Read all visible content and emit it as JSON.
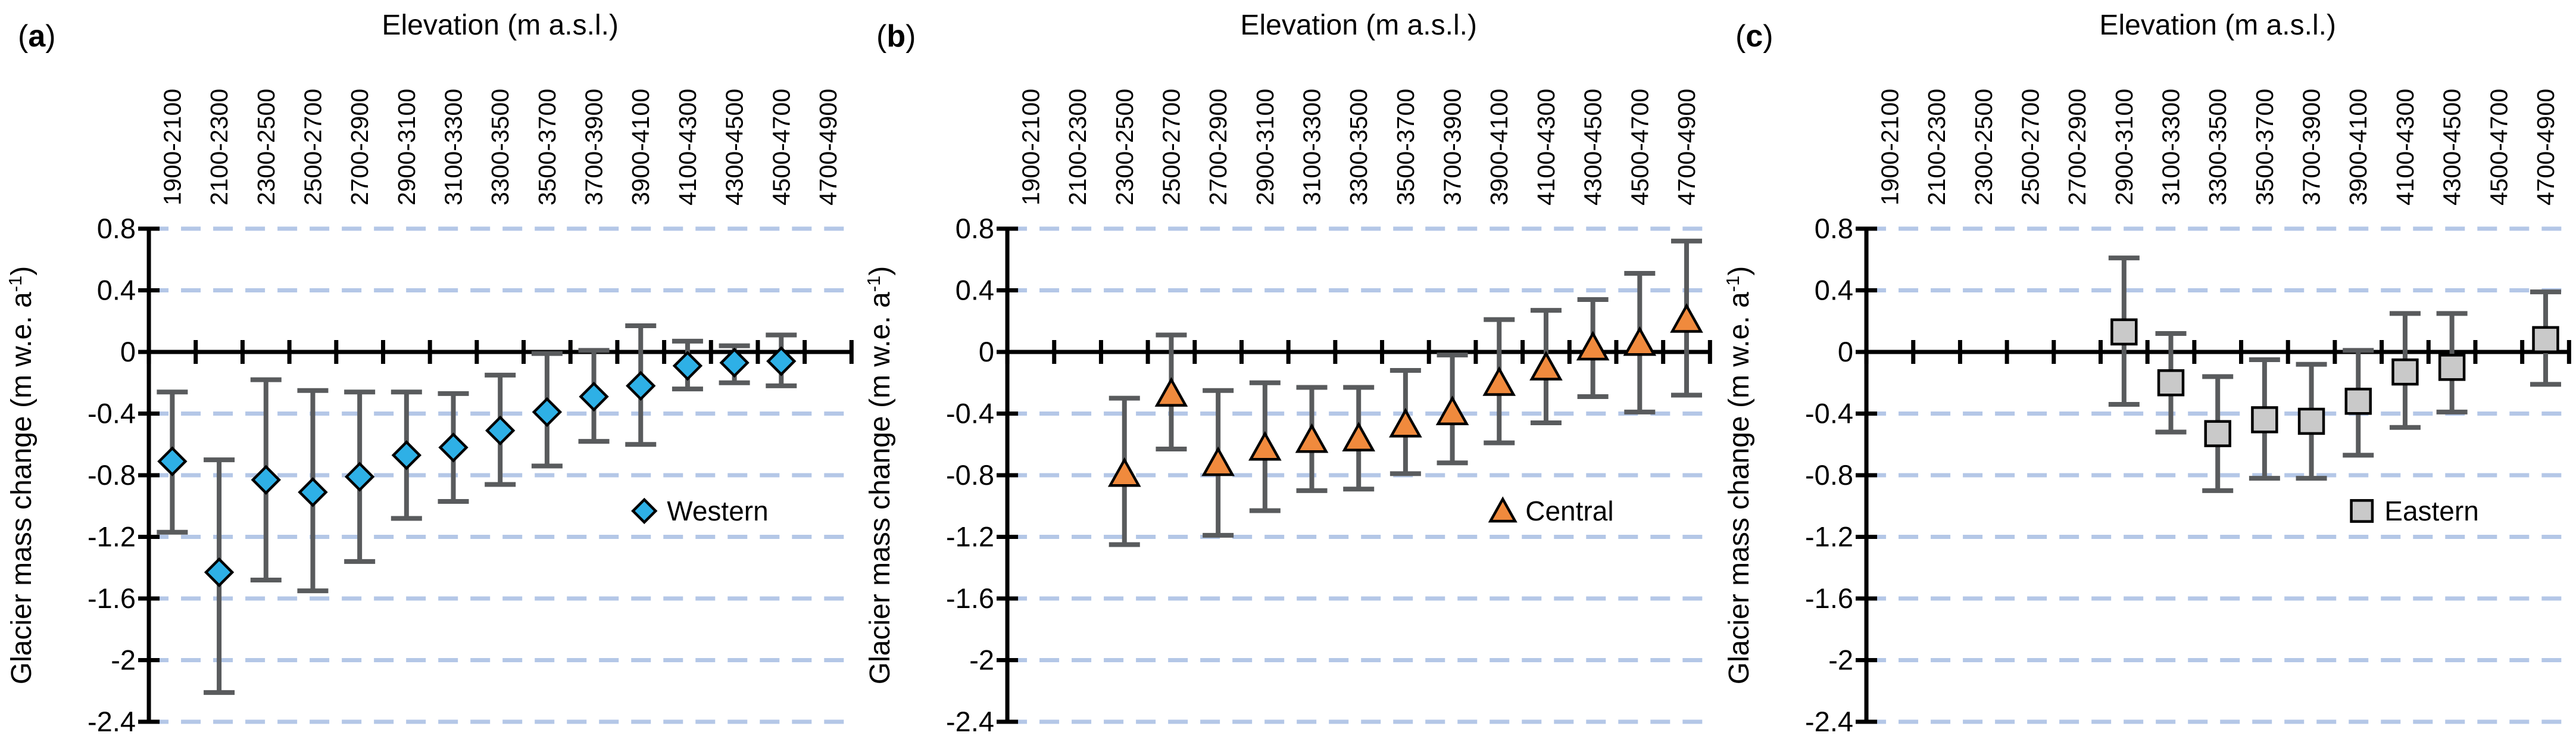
{
  "figure": {
    "background": "#ffffff",
    "x_axis_title": "Elevation (m a.s.l.)",
    "y_axis_title": "Glacier mass change (m w.e. a⁻¹)",
    "ylabel_main": "Glacier mass change (m w.e. a",
    "ylabel_sup": "-1",
    "ylabel_end": ")",
    "colors": {
      "axis": "#000000",
      "gridline": "#b4c7e7",
      "error_bar": "#595b5d",
      "western": "#2eb0e6",
      "central": "#f08a3d",
      "eastern": "#c9c9c9"
    }
  },
  "chart_data": {
    "type": "scatter",
    "title": "Elevation (m a.s.l.)",
    "ylabel": "Glacier mass change (m w.e. a⁻¹)",
    "ylim": [
      -2.4,
      0.8
    ],
    "yticks": [
      0.8,
      0.4,
      0,
      -0.4,
      -0.8,
      -1.2,
      -1.6,
      -2,
      -2.4
    ],
    "ytick_labels": [
      "0.8",
      "0.4",
      "0",
      "-0.4",
      "-0.8",
      "-1.2",
      "-1.6",
      "-2",
      "-2.4"
    ],
    "grid": "dashed horizontal at every tick except 0; solid black axis at 0",
    "legend_position": "inside right, below center",
    "categories": [
      "1900-2100",
      "2100-2300",
      "2300-2500",
      "2500-2700",
      "2700-2900",
      "2900-3100",
      "3100-3300",
      "3300-3500",
      "3500-3700",
      "3700-3900",
      "3900-4100",
      "4100-4300",
      "4300-4500",
      "4500-4700",
      "4700-4900"
    ],
    "panels": [
      {
        "label": "(a)",
        "letter": "a",
        "legend": "Western",
        "marker": "diamond",
        "color": "#2eb0e6",
        "values": [
          -0.71,
          -1.43,
          -0.83,
          -0.91,
          -0.81,
          -0.67,
          -0.62,
          -0.51,
          -0.39,
          -0.29,
          -0.22,
          -0.09,
          -0.07,
          -0.06,
          null
        ],
        "upper": [
          -0.26,
          -0.7,
          -0.18,
          -0.25,
          -0.26,
          -0.26,
          -0.27,
          -0.15,
          -0.01,
          0.01,
          0.17,
          0.07,
          0.04,
          0.11,
          null
        ],
        "lower": [
          -1.17,
          -2.21,
          -1.48,
          -1.55,
          -1.36,
          -1.08,
          -0.97,
          -0.86,
          -0.74,
          -0.58,
          -0.6,
          -0.24,
          -0.2,
          -0.22,
          null
        ]
      },
      {
        "label": "(b)",
        "letter": "b",
        "legend": "Central",
        "marker": "triangle",
        "color": "#f08a3d",
        "values": [
          null,
          null,
          -0.79,
          -0.27,
          -0.72,
          -0.62,
          -0.57,
          -0.56,
          -0.47,
          -0.39,
          -0.2,
          -0.1,
          0.03,
          0.06,
          0.21
        ],
        "upper": [
          null,
          null,
          -0.3,
          0.11,
          -0.25,
          -0.2,
          -0.23,
          -0.23,
          -0.12,
          -0.02,
          0.21,
          0.27,
          0.34,
          0.51,
          0.72
        ],
        "lower": [
          null,
          null,
          -1.25,
          -0.63,
          -1.19,
          -1.03,
          -0.9,
          -0.89,
          -0.79,
          -0.72,
          -0.59,
          -0.46,
          -0.29,
          -0.39,
          -0.28
        ]
      },
      {
        "label": "(c)",
        "letter": "c",
        "legend": "Eastern",
        "marker": "square",
        "color": "#c9c9c9",
        "values": [
          null,
          null,
          null,
          null,
          null,
          0.13,
          -0.2,
          -0.53,
          -0.44,
          -0.45,
          -0.32,
          -0.13,
          -0.1,
          null,
          0.08
        ],
        "upper": [
          null,
          null,
          null,
          null,
          null,
          0.61,
          0.12,
          -0.16,
          -0.05,
          -0.08,
          0.01,
          0.25,
          0.25,
          null,
          0.39
        ],
        "lower": [
          null,
          null,
          null,
          null,
          null,
          -0.34,
          -0.52,
          -0.9,
          -0.82,
          -0.82,
          -0.67,
          -0.49,
          -0.39,
          null,
          -0.21
        ]
      }
    ]
  }
}
